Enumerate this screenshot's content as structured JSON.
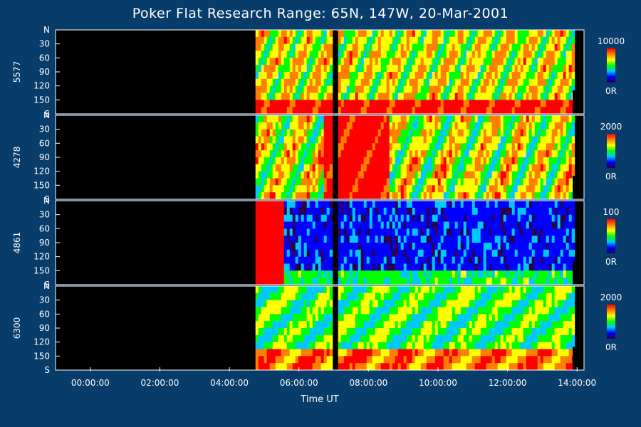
{
  "chart_data": {
    "type": "heatmap",
    "title": "Poker Flat Research Range: 65N, 147W, 20-Mar-2001",
    "xlabel": "Time UT",
    "x_tick_labels": [
      "00:00:00",
      "02:00:00",
      "04:00:00",
      "06:00:00",
      "08:00:00",
      "10:00:00",
      "12:00:00",
      "14:00:00"
    ],
    "x_range_hours": [
      -1.0,
      14.2
    ],
    "y_tick_labels": [
      "N",
      "30",
      "60",
      "90",
      "120",
      "150",
      "S"
    ],
    "y_range_deg": [
      0,
      180
    ],
    "data_start_hours": 4.75,
    "panels": [
      {
        "name": "5577",
        "colorbar_max": "10000",
        "colorbar_min": "0R"
      },
      {
        "name": "4278",
        "colorbar_max": "2000",
        "colorbar_min": "0R"
      },
      {
        "name": "4861",
        "colorbar_max": "100",
        "colorbar_min": "0R"
      },
      {
        "name": "6300",
        "colorbar_max": "2000",
        "colorbar_min": "0R"
      }
    ],
    "colorscale": [
      "#2a0050",
      "#0000ff",
      "#00c8ff",
      "#00ff00",
      "#ffff00",
      "#ff8000",
      "#ff0000"
    ]
  }
}
